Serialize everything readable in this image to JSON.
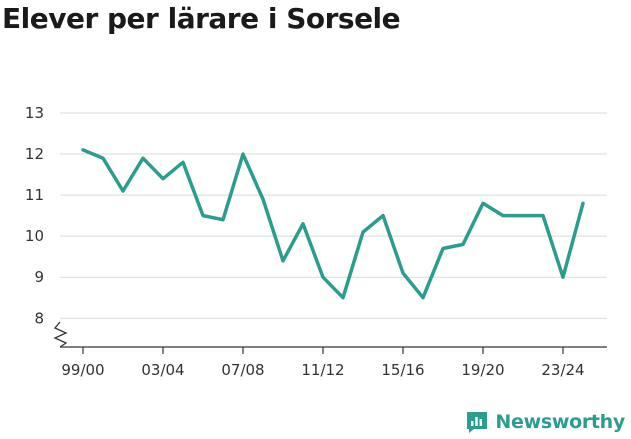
{
  "chart_data": {
    "type": "line",
    "title": "Elever per lärare i Sorsele",
    "xlabel": "",
    "ylabel": "",
    "ylim": [
      7.3,
      13
    ],
    "yticks": [
      8,
      9,
      10,
      11,
      12,
      13
    ],
    "axis_break": true,
    "grid": true,
    "legend": "none",
    "x": [
      "99/00",
      "00/01",
      "01/02",
      "02/03",
      "03/04",
      "04/05",
      "05/06",
      "06/07",
      "07/08",
      "08/09",
      "09/10",
      "10/11",
      "11/12",
      "12/13",
      "13/14",
      "14/15",
      "15/16",
      "16/17",
      "17/18",
      "18/19",
      "19/20",
      "20/21",
      "21/22",
      "22/23",
      "23/24",
      "24/25"
    ],
    "xticks": [
      "99/00",
      "03/04",
      "07/08",
      "11/12",
      "15/16",
      "19/20",
      "23/24"
    ],
    "series": [
      {
        "values": [
          12.1,
          11.9,
          11.1,
          11.9,
          11.4,
          11.8,
          10.5,
          10.4,
          12.0,
          10.9,
          9.4,
          10.3,
          9.0,
          8.5,
          10.1,
          10.5,
          9.1,
          8.5,
          9.7,
          9.8,
          10.8,
          10.5,
          10.5,
          10.5,
          9.0,
          10.8
        ]
      }
    ],
    "colors": {
      "line": "#2a9d8f",
      "grid": "#d9d9d9",
      "axis": "#333333"
    }
  },
  "brand": {
    "name": "Newsworthy",
    "icon": "newsworthy-logo-icon"
  }
}
